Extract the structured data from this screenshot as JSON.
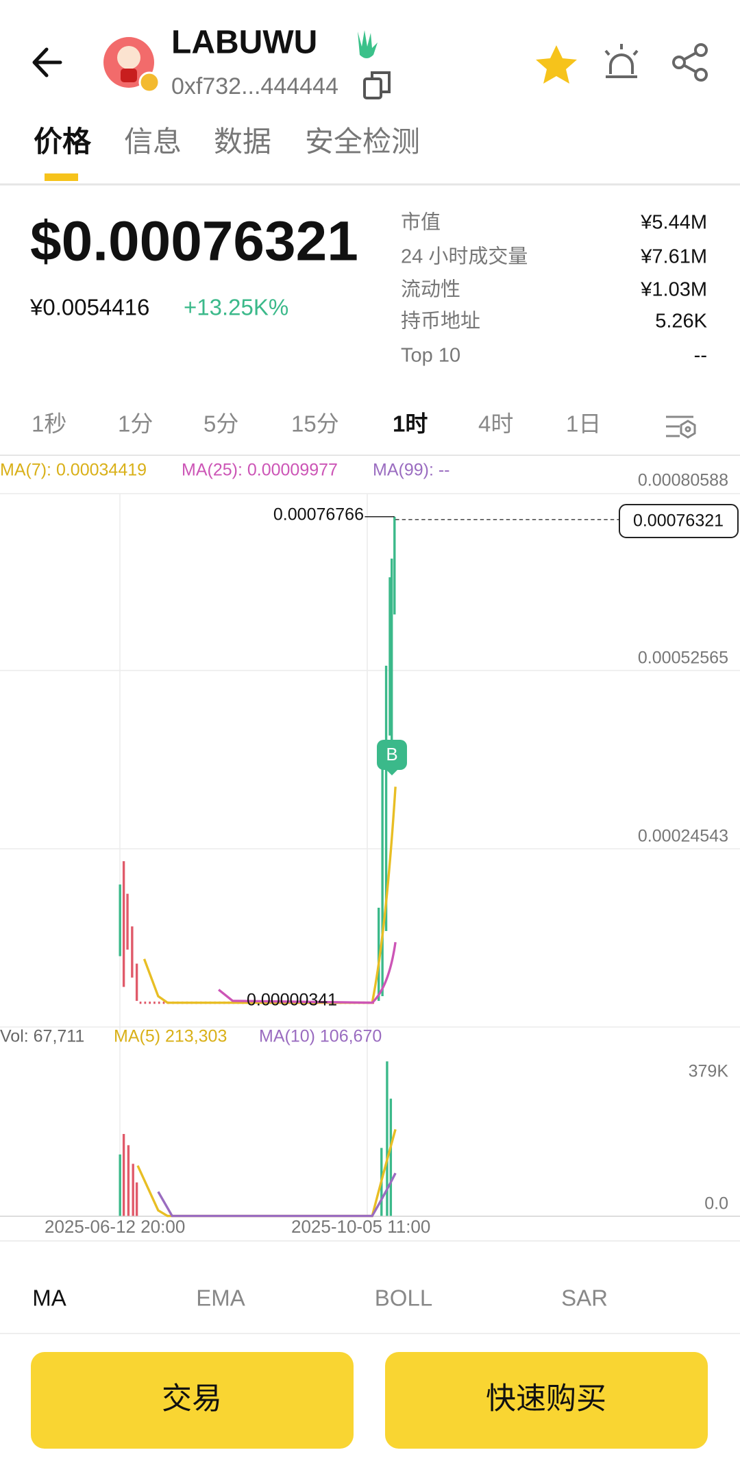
{
  "header": {
    "title": "LABUWU",
    "address": "0xf732...444444"
  },
  "tabs": [
    "价格",
    "信息",
    "数据",
    "安全检测"
  ],
  "price": {
    "usd": "$0.00076321",
    "cny": "¥0.0054416",
    "change": "+13.25K%"
  },
  "stats": [
    {
      "label": "市值",
      "value": "¥5.44M"
    },
    {
      "label": "24 小时成交量",
      "value": "¥7.61M"
    },
    {
      "label": "流动性",
      "value": "¥1.03M"
    },
    {
      "label": "持币地址",
      "value": "5.26K"
    },
    {
      "label": "Top 10",
      "value": "--"
    }
  ],
  "intervals": [
    "1秒",
    "1分",
    "5分",
    "15分",
    "1时",
    "4时",
    "1日"
  ],
  "chart": {
    "ma_labels": [
      "MA(7): 0.00034419",
      "MA(25): 0.00009977",
      "MA(99): --"
    ],
    "price_axis": [
      "0.00080588",
      "0.00052565",
      "0.00024543"
    ],
    "current_price": "0.00076321",
    "high_label": "0.00076766",
    "low_label": "0.00000341",
    "marker": "B",
    "volume_labels": [
      "Vol: 67,711",
      "MA(5) 213,303",
      "MA(10) 106,670"
    ],
    "volume_axis": [
      "379K",
      "0.0"
    ],
    "dates": [
      "2025-06-12 20:00",
      "2025-10-05 11:00"
    ]
  },
  "indicators": [
    "MA",
    "EMA",
    "BOLL",
    "SAR"
  ],
  "buttons": [
    "交易",
    "快速购买"
  ]
}
